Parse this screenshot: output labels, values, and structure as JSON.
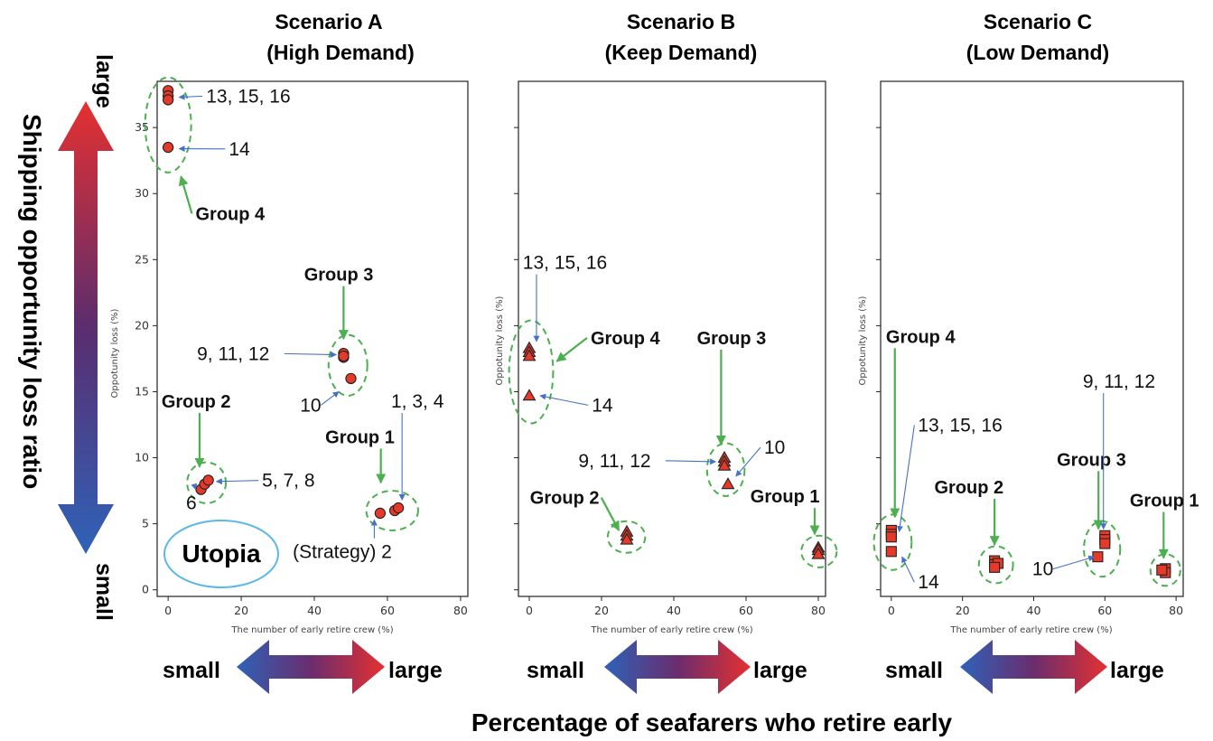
{
  "colors": {
    "marker": "#e53a2a",
    "group_ellipse": "#4caf50",
    "ann_arrow": "#4472c4",
    "utopia": "#5bb8e8",
    "grad_small": "#2f62b8",
    "grad_large": "#e53030"
  },
  "figure": {
    "xlabel": "The number of early retire crew (%)",
    "ylabel": "Oppotunity loss (%)",
    "y_axis_label": "Shipping opportunity loss ratio",
    "y_large": "large",
    "y_small": "small",
    "x_axis_label": "Percentage of seafarers who retire early",
    "x_small": "small",
    "x_large": "large",
    "utopia": "Utopia",
    "xticks": [
      "0",
      "20",
      "40",
      "60",
      "80"
    ],
    "yticks": [
      "0",
      "5",
      "10",
      "15",
      "20",
      "25",
      "30",
      "35"
    ]
  },
  "chart_data": [
    {
      "type": "scatter",
      "title": "Scenario A",
      "subtitle": "(High Demand)",
      "marker": "circle",
      "xlim": [
        -3,
        82
      ],
      "ylim": [
        -0.5,
        38.5
      ],
      "points": [
        {
          "x": 0,
          "y": 37.8
        },
        {
          "x": 0,
          "y": 37.4
        },
        {
          "x": 0,
          "y": 37.1
        },
        {
          "x": 0,
          "y": 33.5
        },
        {
          "x": 48,
          "y": 17.9
        },
        {
          "x": 48,
          "y": 17.6
        },
        {
          "x": 48,
          "y": 17.7
        },
        {
          "x": 50,
          "y": 16.0
        },
        {
          "x": 9,
          "y": 7.6
        },
        {
          "x": 10,
          "y": 8.0
        },
        {
          "x": 11,
          "y": 8.3
        },
        {
          "x": 58,
          "y": 5.8
        },
        {
          "x": 62,
          "y": 6.0
        },
        {
          "x": 63,
          "y": 6.2
        }
      ],
      "ellipses": [
        {
          "cx": 0,
          "cy": 35.2,
          "rx": 6.3,
          "ry": 3.6
        },
        {
          "cx": 49.2,
          "cy": 17.0,
          "rx": 5.3,
          "ry": 2.3
        },
        {
          "cx": 10.5,
          "cy": 8.1,
          "rx": 5.3,
          "ry": 1.55
        },
        {
          "cx": 61.3,
          "cy": 6.0,
          "rx": 7.1,
          "ry": 1.5
        }
      ],
      "annotations": [
        {
          "text": "13, 15, 16",
          "kind": "label",
          "tx": 10.4,
          "ty": 36.9,
          "ax": 3,
          "ay": 37.3,
          "anchor": "start"
        },
        {
          "text": "14",
          "kind": "label",
          "tx": 16.6,
          "ty": 32.9,
          "ax": 3,
          "ay": 33.4,
          "anchor": "start"
        },
        {
          "text": "Group 4",
          "kind": "group",
          "tx": 7.5,
          "ty": 28.0,
          "ax": 3.5,
          "ay": 31.3,
          "anchor": "start"
        },
        {
          "text": "Group 3",
          "kind": "group",
          "tx": 37.2,
          "ty": 23.4,
          "ax": 48,
          "ay": 19.0,
          "anchor": "start"
        },
        {
          "text": "9, 11, 12",
          "kind": "label",
          "tx": 7.9,
          "ty": 17.4,
          "ax": 46,
          "ay": 17.8,
          "anchor": "start"
        },
        {
          "text": "10",
          "kind": "label",
          "tx": 36.1,
          "ty": 13.5,
          "ax": 46.7,
          "ay": 15.0,
          "anchor": "start"
        },
        {
          "text": "Group 2",
          "kind": "group",
          "tx": -1.8,
          "ty": 13.8,
          "ax": 8.6,
          "ay": 9.3,
          "anchor": "start"
        },
        {
          "text": "5, 7, 8",
          "kind": "label",
          "tx": 25.7,
          "ty": 7.8,
          "ax": 13.2,
          "ay": 8.2,
          "anchor": "start"
        },
        {
          "text": "6",
          "kind": "label",
          "tx": 4.9,
          "ty": 6.1,
          "ax": 7.5,
          "ay": 7.6,
          "anchor": "start"
        },
        {
          "text": "1, 3, 4",
          "kind": "label",
          "tx": 61.0,
          "ty": 13.8,
          "ax": 64,
          "ay": 6.8,
          "anchor": "start"
        },
        {
          "text": "Group 1",
          "kind": "group",
          "tx": 43.0,
          "ty": 11.1,
          "ax": 58.2,
          "ay": 8.1,
          "anchor": "start"
        },
        {
          "text": "(Strategy) 2",
          "kind": "label",
          "tx": 34.1,
          "ty": 2.4,
          "ax": 56.4,
          "ay": 5.3,
          "anchor": "start"
        }
      ]
    },
    {
      "type": "scatter",
      "title": "Scenario B",
      "subtitle": "(Keep Demand)",
      "marker": "triangle",
      "xlim": [
        -3,
        82
      ],
      "ylim": [
        -0.5,
        38.5
      ],
      "points": [
        {
          "x": 0,
          "y": 18.3
        },
        {
          "x": 0,
          "y": 18.0
        },
        {
          "x": 0,
          "y": 17.7
        },
        {
          "x": 0,
          "y": 14.7
        },
        {
          "x": 54,
          "y": 10.0
        },
        {
          "x": 54,
          "y": 9.7
        },
        {
          "x": 54,
          "y": 9.4
        },
        {
          "x": 55,
          "y": 8.0
        },
        {
          "x": 27,
          "y": 4.4
        },
        {
          "x": 27,
          "y": 4.1
        },
        {
          "x": 27,
          "y": 3.8
        },
        {
          "x": 80,
          "y": 3.2
        },
        {
          "x": 80,
          "y": 3.0
        },
        {
          "x": 80,
          "y": 2.7
        }
      ],
      "ellipses": [
        {
          "cx": 0.5,
          "cy": 16.5,
          "rx": 6.1,
          "ry": 3.9
        },
        {
          "cx": 54.4,
          "cy": 9.1,
          "rx": 5.2,
          "ry": 2.0
        },
        {
          "cx": 26.9,
          "cy": 4.0,
          "rx": 5.2,
          "ry": 1.2
        },
        {
          "cx": 80.2,
          "cy": 2.9,
          "rx": 4.9,
          "ry": 1.2
        }
      ],
      "annotations": [
        {
          "text": "13, 15, 16",
          "kind": "label",
          "tx": -1.8,
          "ty": 24.3,
          "ax": 2.0,
          "ay": 18.8,
          "anchor": "start"
        },
        {
          "text": "Group 4",
          "kind": "group",
          "tx": 17.0,
          "ty": 18.6,
          "ax": 7.6,
          "ay": 17.3,
          "anchor": "start"
        },
        {
          "text": "14",
          "kind": "label",
          "tx": 17.3,
          "ty": 13.5,
          "ax": 3.0,
          "ay": 14.7,
          "anchor": "start"
        },
        {
          "text": "Group 3",
          "kind": "group",
          "tx": 46.4,
          "ty": 18.6,
          "ax": 53.1,
          "ay": 11.0,
          "anchor": "start"
        },
        {
          "text": "10",
          "kind": "label",
          "tx": 65.0,
          "ty": 10.3,
          "ax": 57.2,
          "ay": 8.6,
          "anchor": "start"
        },
        {
          "text": "9, 11, 12",
          "kind": "label",
          "tx": 13.6,
          "ty": 9.3,
          "ax": 51.6,
          "ay": 9.7,
          "anchor": "start"
        },
        {
          "text": "Group 1",
          "kind": "group",
          "tx": 61.2,
          "ty": 6.6,
          "ax": 79.0,
          "ay": 4.2,
          "anchor": "start"
        },
        {
          "text": "Group 2",
          "kind": "group",
          "tx": 0.2,
          "ty": 6.5,
          "ax": 24.8,
          "ay": 4.5,
          "anchor": "start"
        }
      ]
    },
    {
      "type": "scatter",
      "title": "Scenario C",
      "subtitle": "(Low Demand)",
      "marker": "square",
      "xlim": [
        -3,
        82
      ],
      "ylim": [
        -0.5,
        38.5
      ],
      "points": [
        {
          "x": 0,
          "y": 4.5
        },
        {
          "x": 0,
          "y": 4.2
        },
        {
          "x": 0,
          "y": 4.0
        },
        {
          "x": 0,
          "y": 2.9
        },
        {
          "x": 29,
          "y": 2.2
        },
        {
          "x": 29,
          "y": 1.9
        },
        {
          "x": 30,
          "y": 2.0
        },
        {
          "x": 29,
          "y": 1.7
        },
        {
          "x": 60,
          "y": 4.1
        },
        {
          "x": 60,
          "y": 3.8
        },
        {
          "x": 60,
          "y": 3.5
        },
        {
          "x": 58,
          "y": 2.5
        },
        {
          "x": 77,
          "y": 1.6
        },
        {
          "x": 77,
          "y": 1.3
        },
        {
          "x": 76,
          "y": 1.5
        }
      ],
      "ellipses": [
        {
          "cx": 0.4,
          "cy": 3.6,
          "rx": 5.3,
          "ry": 2.1
        },
        {
          "cx": 29.4,
          "cy": 1.9,
          "rx": 4.8,
          "ry": 1.4
        },
        {
          "cx": 59.2,
          "cy": 3.1,
          "rx": 5.1,
          "ry": 2.1
        },
        {
          "cx": 77.0,
          "cy": 1.5,
          "rx": 4.2,
          "ry": 1.2
        }
      ],
      "annotations": [
        {
          "text": "Group 4",
          "kind": "group",
          "tx": -1.5,
          "ty": 18.7,
          "ax": 1.0,
          "ay": 5.5,
          "anchor": "start"
        },
        {
          "text": "13, 15, 16",
          "kind": "label",
          "tx": 7.5,
          "ty": 12.0,
          "ax": 2.2,
          "ay": 4.4,
          "anchor": "start"
        },
        {
          "text": "14",
          "kind": "label",
          "tx": 7.5,
          "ty": 0.1,
          "ax": 3.0,
          "ay": 2.5,
          "anchor": "start"
        },
        {
          "text": "Group 2",
          "kind": "group",
          "tx": 12.1,
          "ty": 7.3,
          "ax": 29.0,
          "ay": 3.4,
          "anchor": "start"
        },
        {
          "text": "Group 3",
          "kind": "group",
          "tx": 46.5,
          "ty": 9.4,
          "ax": 58.2,
          "ay": 4.6,
          "anchor": "start"
        },
        {
          "text": "9, 11, 12",
          "kind": "label",
          "tx": 53.8,
          "ty": 15.3,
          "ax": 59.6,
          "ay": 4.6,
          "anchor": "start"
        },
        {
          "text": "Group 1",
          "kind": "group",
          "tx": 67.0,
          "ty": 6.3,
          "ax": 76.5,
          "ay": 2.4,
          "anchor": "start"
        },
        {
          "text": "10",
          "kind": "label",
          "tx": 39.6,
          "ty": 1.1,
          "ax": 57.0,
          "ay": 2.5,
          "anchor": "start"
        }
      ]
    }
  ]
}
